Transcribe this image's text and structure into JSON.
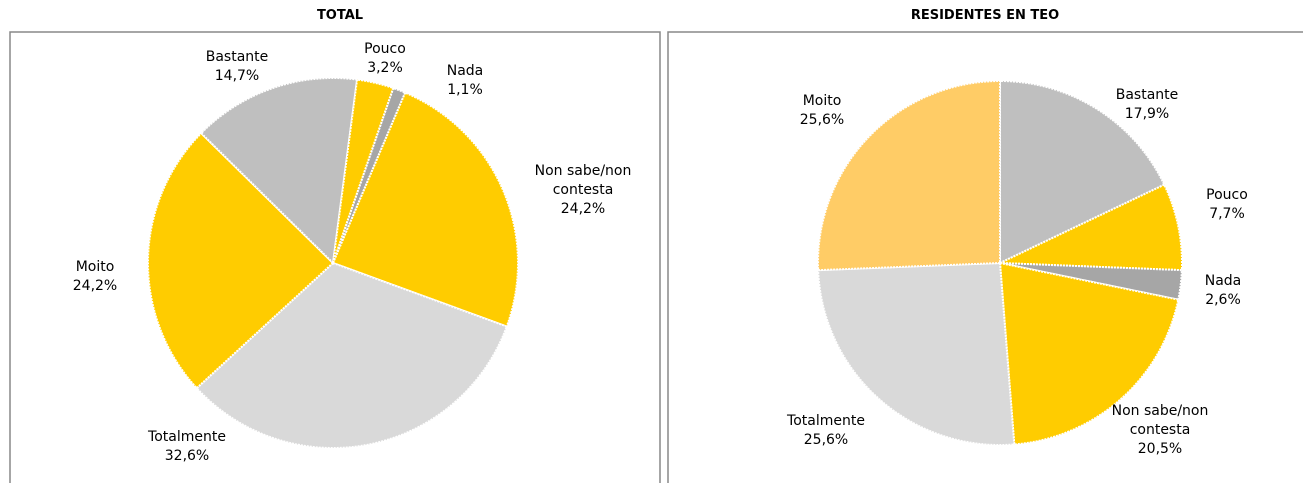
{
  "chart_data": [
    {
      "type": "pie",
      "title": "TOTAL",
      "categories": [
        "Nada",
        "Non sabe/non contesta",
        "Totalmente",
        "Moito",
        "Bastante",
        "Pouco"
      ],
      "values": [
        1.1,
        24.2,
        32.6,
        24.2,
        14.7,
        3.2
      ],
      "value_labels": [
        "1,1%",
        "24,2%",
        "32,6%",
        "24,2%",
        "14,7%",
        "3,2%"
      ],
      "colors": [
        "#a6a6a6",
        "#ffcc00",
        "#d9d9d9",
        "#ffcc00",
        "#bfbfbf",
        "#ffcc00"
      ]
    },
    {
      "type": "pie",
      "title": "RESIDENTES EN TEO",
      "categories": [
        "Bastante",
        "Pouco",
        "Nada",
        "Non sabe/non contesta",
        "Totalmente",
        "Moito"
      ],
      "values": [
        17.9,
        7.7,
        2.6,
        20.5,
        25.6,
        25.6
      ],
      "value_labels": [
        "17,9%",
        "7,7%",
        "2,6%",
        "20,5%",
        "25,6%",
        "25,6%"
      ],
      "colors": [
        "#bfbfbf",
        "#ffcc00",
        "#a6a6a6",
        "#ffcc00",
        "#d9d9d9",
        "#ffcc66"
      ]
    }
  ]
}
